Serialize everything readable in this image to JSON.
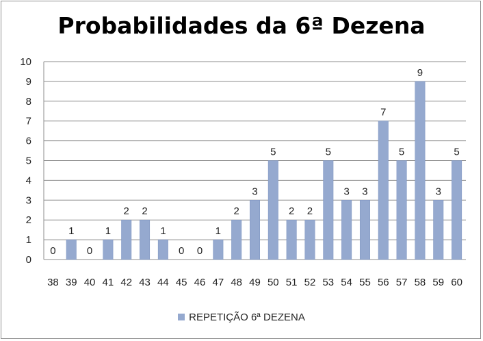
{
  "chart_data": {
    "type": "bar",
    "title": "Probabilidades da 6ª Dezena",
    "categories": [
      "38",
      "39",
      "40",
      "41",
      "42",
      "43",
      "44",
      "45",
      "46",
      "47",
      "48",
      "49",
      "50",
      "51",
      "52",
      "53",
      "54",
      "55",
      "56",
      "57",
      "58",
      "59",
      "60"
    ],
    "series": [
      {
        "name": "REPETIÇÃO 6ª DEZENA",
        "values": [
          0,
          1,
          0,
          1,
          2,
          2,
          1,
          0,
          0,
          1,
          2,
          3,
          5,
          2,
          2,
          5,
          3,
          3,
          7,
          5,
          9,
          3,
          5
        ]
      }
    ],
    "data_labels": [
      "0",
      "1",
      "0",
      "1",
      "2",
      "2",
      "1",
      "0",
      "0",
      "1",
      "2",
      "3",
      "5",
      "2",
      "2",
      "5",
      "3",
      "3",
      "7",
      "5",
      "9",
      "3",
      "5"
    ],
    "y_ticks": [
      "0",
      "1",
      "2",
      "3",
      "4",
      "5",
      "6",
      "7",
      "8",
      "9",
      "10"
    ],
    "ylim": [
      0,
      10
    ],
    "xlabel": "",
    "ylabel": "",
    "grid": true,
    "legend_position": "bottom",
    "bar_color": "#95a9cf",
    "bar_edge_color": "#7c93c0",
    "grid_color": "#8c8c8c"
  }
}
